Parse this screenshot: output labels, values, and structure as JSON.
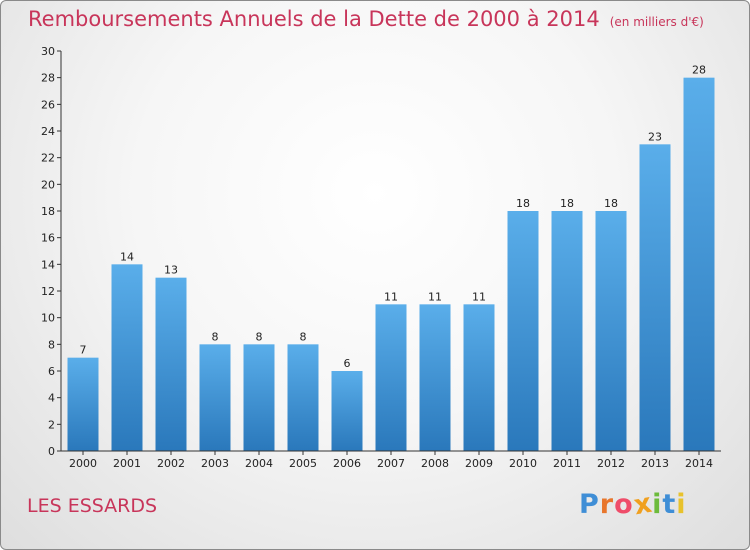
{
  "header": {
    "title": "Remboursements Annuels de la Dette de 2000 à 2014",
    "subtitle": "(en milliers d'€)"
  },
  "footer": {
    "commune": "LES ESSARDS",
    "logo": "Proxiti"
  },
  "colors": {
    "title": "#c8355a",
    "bar_top": "#5aaeea",
    "bar_bottom": "#2a78bb",
    "logo_letters": [
      "#3f8ed6",
      "#e8762c",
      "#ef4d6a",
      "#f0a020",
      "#6dbb3c",
      "#3f8ed6",
      "#e8c22c"
    ]
  },
  "chart_data": {
    "type": "bar",
    "title": "Remboursements Annuels de la Dette de 2000 à 2014",
    "xlabel": "",
    "ylabel": "",
    "categories": [
      "2000",
      "2001",
      "2002",
      "2003",
      "2004",
      "2005",
      "2006",
      "2007",
      "2008",
      "2009",
      "2010",
      "2011",
      "2012",
      "2013",
      "2014"
    ],
    "values": [
      7,
      14,
      13,
      8,
      8,
      8,
      6,
      11,
      11,
      11,
      18,
      18,
      18,
      23,
      28
    ],
    "ylim": [
      0,
      30
    ],
    "yticks": [
      0,
      2,
      4,
      6,
      8,
      10,
      12,
      14,
      16,
      18,
      20,
      22,
      24,
      26,
      28,
      30
    ],
    "grid": false,
    "data_labels": true
  }
}
